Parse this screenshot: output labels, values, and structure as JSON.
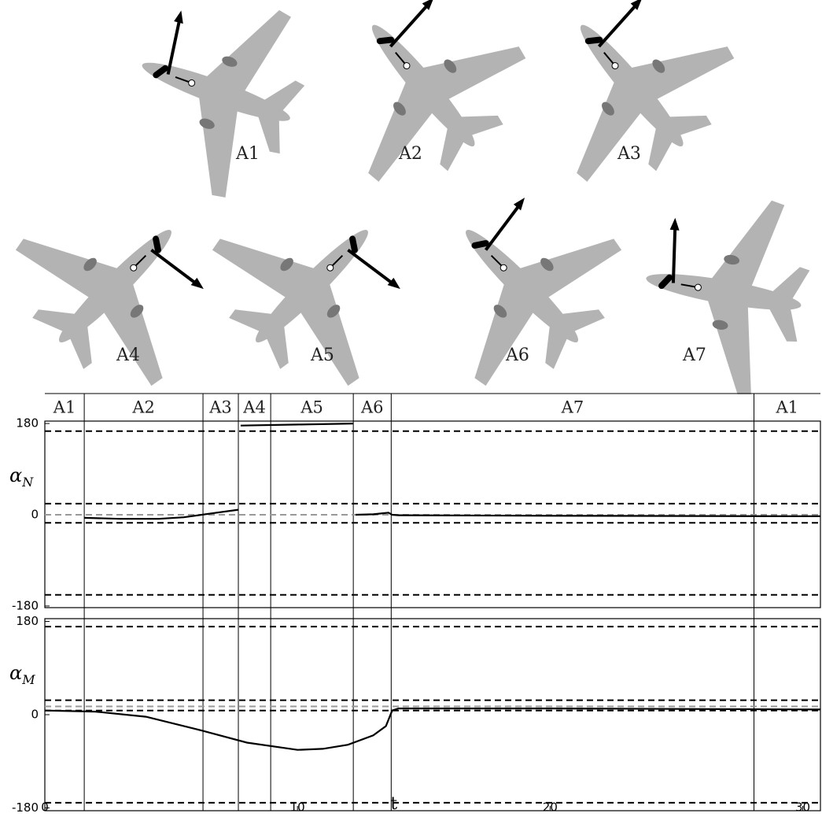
{
  "diagrams": [
    {
      "label": "A1"
    },
    {
      "label": "A2"
    },
    {
      "label": "A3"
    },
    {
      "label": "A4"
    },
    {
      "label": "A5"
    },
    {
      "label": "A6"
    },
    {
      "label": "A7"
    }
  ],
  "chart_data": [
    {
      "type": "line",
      "ylabel": "α",
      "ylabel_sub": "N",
      "ylim": [
        -180,
        180
      ],
      "yticks": [
        180,
        0,
        -180
      ],
      "xlim": [
        0,
        30.7
      ],
      "phase_labels": [
        "A1",
        "A2",
        "A3",
        "A4",
        "A5",
        "A6",
        "A7",
        "A1"
      ],
      "phase_boundaries": [
        1.56,
        6.26,
        7.66,
        8.94,
        12.21,
        13.71,
        28.07
      ],
      "hlines": [
        {
          "value": 165,
          "color": "#000000"
        },
        {
          "value": 22,
          "color": "#000000"
        },
        {
          "value": 0,
          "color": "#999999"
        },
        {
          "value": -16,
          "color": "#000000"
        },
        {
          "value": -158,
          "color": "#000000"
        }
      ],
      "series": [
        {
          "color": "#000000",
          "x": [
            1.56,
            3,
            4.5,
            5.5,
            6.5,
            7.66,
            7.7,
            7.75,
            10,
            12.2,
            12.25,
            12.3,
            13,
            13.6,
            13.75,
            14,
            20,
            30.7
          ],
          "values": [
            -6,
            -8,
            -8,
            -5,
            2,
            10,
            null,
            176,
            178,
            180,
            null,
            0,
            1,
            4,
            0,
            -1,
            -2,
            -3
          ]
        }
      ]
    },
    {
      "type": "line",
      "ylabel": "α",
      "ylabel_sub": "M",
      "ylim": [
        -180,
        180
      ],
      "yticks": [
        180,
        0,
        -180
      ],
      "xlim": [
        0,
        30.7
      ],
      "xticks": [
        0,
        10,
        20,
        30
      ],
      "xlabel": "t",
      "hlines": [
        {
          "value": 170,
          "color": "#000000"
        },
        {
          "value": 28,
          "color": "#000000"
        },
        {
          "value": 16,
          "color": "#999999"
        },
        {
          "value": 8,
          "color": "#000000"
        },
        {
          "value": -170,
          "color": "#000000"
        }
      ],
      "series": [
        {
          "color": "#000000",
          "x": [
            0,
            2,
            4,
            6,
            8,
            10,
            11,
            12,
            13,
            13.5,
            13.75,
            14,
            20,
            30.7
          ],
          "values": [
            8,
            6,
            -4,
            -28,
            -54,
            -68,
            -66,
            -58,
            -40,
            -22,
            8,
            12,
            12,
            10
          ]
        }
      ]
    }
  ]
}
